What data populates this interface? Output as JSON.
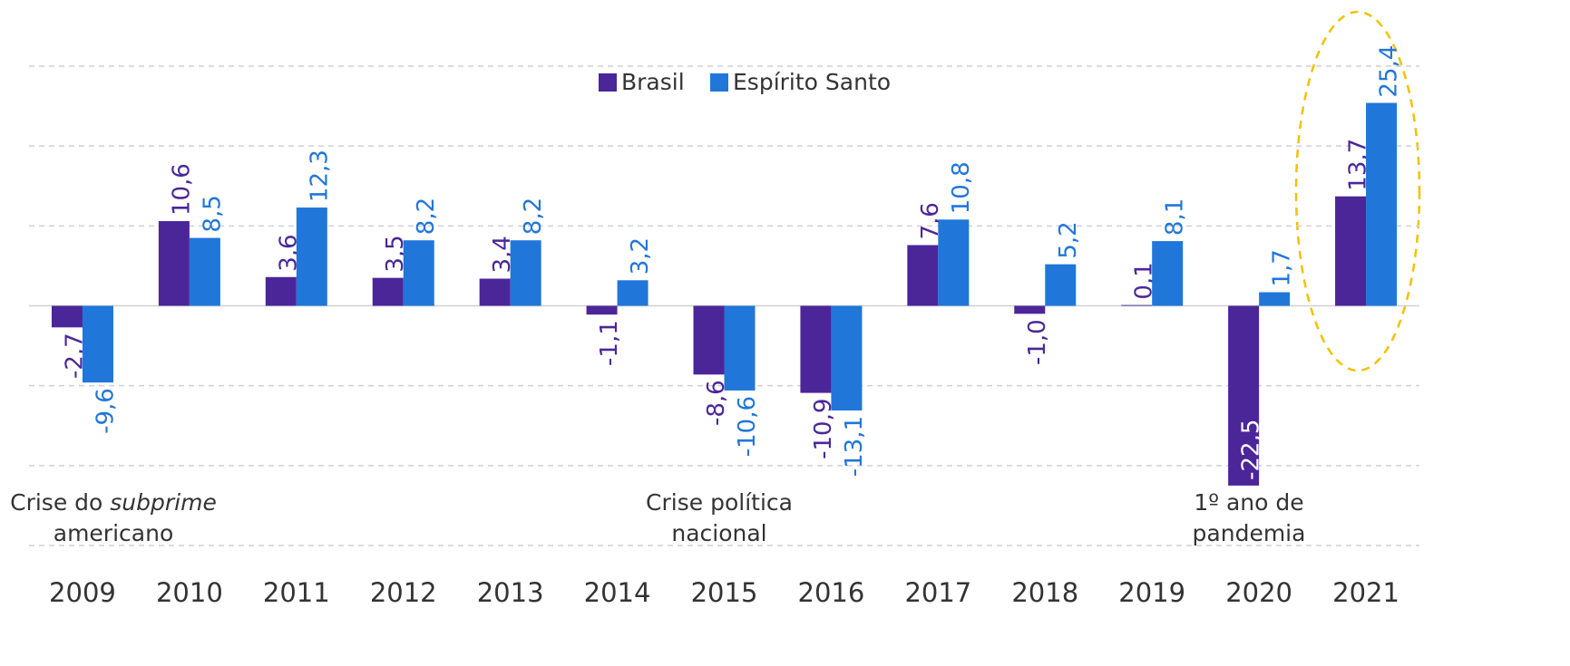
{
  "chart_data": {
    "type": "bar",
    "categories": [
      "2009",
      "2010",
      "2011",
      "2012",
      "2013",
      "2014",
      "2015",
      "2016",
      "2017",
      "2018",
      "2019",
      "2020",
      "2021"
    ],
    "series": [
      {
        "name": "Brasil",
        "color": "#4b2699",
        "values": [
          -2.7,
          10.6,
          3.6,
          3.5,
          3.4,
          -1.1,
          -8.6,
          -10.9,
          7.6,
          -1.0,
          0.1,
          -22.5,
          13.7
        ],
        "value_labels": [
          "-2,7",
          "10,6",
          "3,6",
          "3,5",
          "3,4",
          "-1,1",
          "-8,6",
          "-10,9",
          "7,6",
          "-1,0",
          "0,1",
          "-22,5",
          "13,7"
        ]
      },
      {
        "name": "Espírito Santo",
        "color": "#2176d9",
        "values": [
          -9.6,
          8.5,
          12.3,
          8.2,
          8.2,
          3.2,
          -10.6,
          -13.1,
          10.8,
          5.2,
          8.1,
          1.7,
          25.4
        ],
        "value_labels": [
          "-9,6",
          "8,5",
          "12,3",
          "8,2",
          "8,2",
          "3,2",
          "-10,6",
          "-13,1",
          "10,8",
          "5,2",
          "8,1",
          "1,7",
          "25,4"
        ]
      }
    ],
    "ylim": [
      -30,
      30
    ],
    "yticks": [
      -30,
      -20,
      -10,
      0,
      10,
      20,
      30
    ],
    "grid": true,
    "annotations": [
      {
        "lines": [
          [
            {
              "text": "Crise do "
            },
            {
              "text": "subprime",
              "italic": true
            }
          ],
          [
            {
              "text": "americano"
            }
          ]
        ]
      },
      {
        "lines": [
          [
            {
              "text": "Crise política"
            }
          ],
          [
            {
              "text": "nacional"
            }
          ]
        ]
      },
      {
        "lines": [
          [
            {
              "text": "1º ano de"
            }
          ],
          [
            {
              "text": "pandemia"
            }
          ]
        ]
      }
    ]
  }
}
